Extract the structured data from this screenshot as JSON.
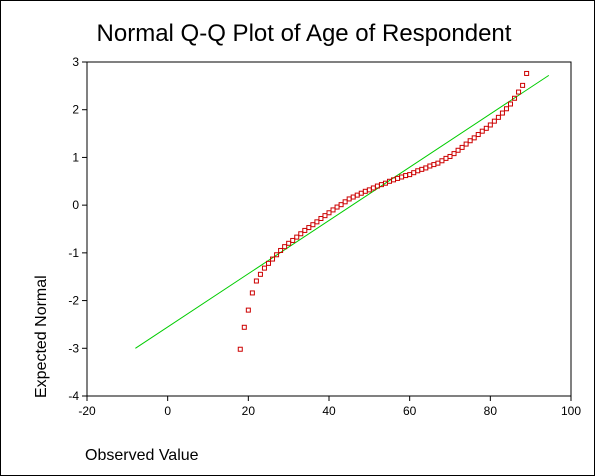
{
  "chart_data": {
    "type": "scatter",
    "title": "Normal Q-Q Plot of Age of Respondent",
    "xlabel": "Observed Value",
    "ylabel": "Expected Normal",
    "xlim": [
      -20,
      100
    ],
    "ylim": [
      -4,
      3
    ],
    "x_ticks": [
      "-20",
      "0",
      "20",
      "40",
      "60",
      "80",
      "100"
    ],
    "y_ticks": [
      "3",
      "2",
      "1",
      "0",
      "-1",
      "-2",
      "-3",
      "-4"
    ],
    "grid": false,
    "legend": "none",
    "colors": {
      "points": "#cc0000",
      "reference_line": "#00cc00"
    },
    "reference_line": {
      "x": [
        -8,
        94.5
      ],
      "y": [
        -3.0,
        2.72
      ]
    },
    "points": {
      "x": [
        18,
        19,
        20,
        21,
        22,
        23,
        24,
        25,
        26,
        27,
        28,
        29,
        30,
        31,
        32,
        33,
        34,
        35,
        36,
        37,
        38,
        39,
        40,
        41,
        42,
        43,
        44,
        45,
        46,
        47,
        48,
        49,
        50,
        51,
        52,
        53,
        54,
        55,
        56,
        57,
        58,
        59,
        60,
        61,
        62,
        63,
        64,
        65,
        66,
        67,
        68,
        69,
        70,
        71,
        72,
        73,
        74,
        75,
        76,
        77,
        78,
        79,
        80,
        81,
        82,
        83,
        84,
        85,
        86,
        87,
        88,
        89
      ],
      "y": [
        -3.02,
        -2.56,
        -2.2,
        -1.84,
        -1.59,
        -1.45,
        -1.32,
        -1.22,
        -1.13,
        -1.04,
        -0.95,
        -0.87,
        -0.8,
        -0.74,
        -0.67,
        -0.6,
        -0.53,
        -0.47,
        -0.41,
        -0.35,
        -0.28,
        -0.22,
        -0.16,
        -0.1,
        -0.04,
        0.01,
        0.07,
        0.13,
        0.17,
        0.21,
        0.25,
        0.29,
        0.32,
        0.36,
        0.4,
        0.43,
        0.46,
        0.5,
        0.53,
        0.56,
        0.59,
        0.62,
        0.64,
        0.68,
        0.72,
        0.75,
        0.78,
        0.82,
        0.85,
        0.88,
        0.93,
        0.98,
        1.02,
        1.08,
        1.15,
        1.21,
        1.28,
        1.35,
        1.41,
        1.48,
        1.55,
        1.61,
        1.68,
        1.76,
        1.84,
        1.93,
        2.02,
        2.12,
        2.24,
        2.37,
        2.51,
        2.76
      ]
    }
  }
}
